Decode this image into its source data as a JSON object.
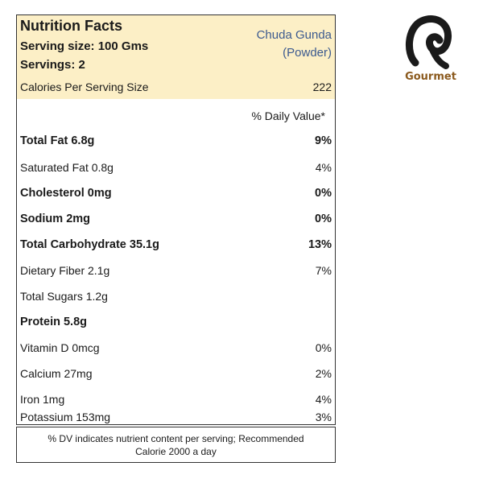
{
  "label": {
    "title": "Nutrition Facts",
    "serving_size": "Serving size: 100 Gms",
    "servings": "Servings: 2",
    "product_line1": "Chuda Gunda",
    "product_line2": "(Powder)",
    "calories_label": "Calories Per Serving Size",
    "calories_value": "222",
    "dv_header": "% Daily Value*",
    "rows": [
      {
        "name": "Total Fat 6.8g",
        "pct": "9%",
        "bold": true
      },
      {
        "name": "Saturated Fat 0.8g",
        "pct": "4%",
        "bold": false
      },
      {
        "name": "Cholesterol 0mg",
        "pct": "0%",
        "bold": true
      },
      {
        "name": "Sodium 2mg",
        "pct": "0%",
        "bold": true
      },
      {
        "name": "Total Carbohydrate 35.1g",
        "pct": "13%",
        "bold": true
      },
      {
        "name": "Dietary Fiber 2.1g",
        "pct": "7%",
        "bold": false
      },
      {
        "name": "Total Sugars 1.2g",
        "pct": "",
        "bold": false
      },
      {
        "name": "Protein 5.8g",
        "pct": "",
        "bold": true
      },
      {
        "name": "Vitamin D 0mcg",
        "pct": "0%",
        "bold": false
      },
      {
        "name": "Calcium 27mg",
        "pct": "2%",
        "bold": false
      },
      {
        "name": "Iron 1mg",
        "pct": "4%",
        "bold": false
      },
      {
        "name": "Potassium 153mg",
        "pct": "3%",
        "bold": false
      }
    ],
    "footer_line1": "% DV indicates nutrient content per serving; Recommended",
    "footer_line2": "Calorie 2000 a day"
  },
  "brand": {
    "name": "Gourmet",
    "logo_icon": "gourmet-logo-icon",
    "logo_color": "#1a1a1a",
    "text_color": "#8b5a1e"
  },
  "colors": {
    "header_bg": "#fcefc6",
    "product_text": "#3c5a8f"
  }
}
